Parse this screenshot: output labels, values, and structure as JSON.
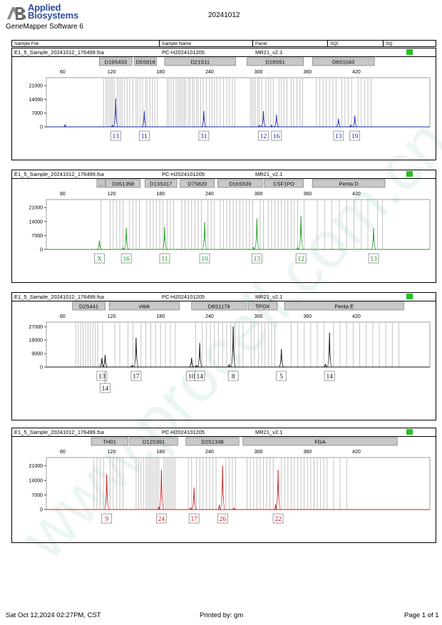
{
  "header": {
    "brand": [
      "Applied",
      "Biosystems"
    ],
    "software": "GeneMapper Software 6",
    "date": "20241012",
    "columns": [
      "Sample File",
      "Sample Name",
      "Panel",
      "SQI",
      "SQ"
    ]
  },
  "panels": [
    {
      "sample_file": "E1_5_Sample_20241012_176499.fsa",
      "sample_name": "PC-H2024101205",
      "panel": "MR21_v2.1",
      "sq_color": "#22c322",
      "color": "#1a2aa0",
      "loci": [
        {
          "name": "D19S433",
          "from": 105,
          "to": 145
        },
        {
          "name": "D5S818",
          "from": 148,
          "to": 175
        },
        {
          "name": "D21S11",
          "from": 185,
          "to": 272
        },
        {
          "name": "D18S51",
          "from": 286,
          "to": 355
        },
        {
          "name": "D6S1043",
          "from": 366,
          "to": 442
        }
      ],
      "x_ticks": [
        60,
        120,
        180,
        240,
        300,
        360,
        420
      ],
      "y_ticks": [
        0,
        7000,
        14000,
        21000
      ],
      "ymax": 25000,
      "peaks": [
        {
          "x": 125,
          "h": 14500,
          "label": "13",
          "row": 0
        },
        {
          "x": 160,
          "h": 8000,
          "label": "11",
          "row": 0
        },
        {
          "x": 233,
          "h": 8000,
          "label": "31",
          "row": 0
        },
        {
          "x": 306,
          "h": 8000,
          "label": "12",
          "row": 0
        },
        {
          "x": 322,
          "h": 6300,
          "label": "16",
          "row": 0
        },
        {
          "x": 398,
          "h": 4200,
          "label": "13",
          "row": 0
        },
        {
          "x": 418,
          "h": 5700,
          "label": "19",
          "row": 0
        }
      ],
      "minor_peaks": [
        {
          "x": 63,
          "h": 1200
        },
        {
          "x": 121,
          "h": 900
        },
        {
          "x": 301,
          "h": 900
        },
        {
          "x": 316,
          "h": 700
        },
        {
          "x": 413,
          "h": 800
        }
      ],
      "bins": [
        110,
        113,
        115,
        117,
        119,
        121,
        123,
        127,
        129,
        131,
        133,
        136,
        139,
        142,
        146,
        150,
        152,
        155,
        158,
        162,
        164,
        167,
        170,
        173,
        176,
        188,
        190,
        193,
        196,
        199,
        201,
        203,
        205,
        207,
        209,
        211,
        214,
        216,
        219,
        221,
        224,
        226,
        229,
        232,
        236,
        240,
        243,
        246,
        249,
        253,
        257,
        261,
        264,
        268,
        271,
        290,
        292,
        294,
        296,
        299,
        301,
        304,
        309,
        312,
        315,
        318,
        325,
        328,
        331,
        335,
        340,
        343,
        347,
        351,
        354,
        371,
        375,
        379,
        383,
        387,
        391,
        395,
        402,
        406,
        410,
        414,
        422,
        426,
        430,
        434,
        438
      ]
    },
    {
      "sample_file": "E1_5_Sample_20241012_176499.fsa",
      "sample_name": "PC-H2024101205",
      "panel": "MR21_v2.1",
      "sq_color": "#22c322",
      "color": "#1e9a1e",
      "loci": [
        {
          "name": "...",
          "from": 102,
          "to": 112
        },
        {
          "name": "D3S1358",
          "from": 113,
          "to": 155
        },
        {
          "name": "D13S317",
          "from": 161,
          "to": 200
        },
        {
          "name": "D7S820",
          "from": 204,
          "to": 246
        },
        {
          "name": "D16S539",
          "from": 250,
          "to": 305
        },
        {
          "name": "CSF1PO",
          "from": 307,
          "to": 355
        },
        {
          "name": "Penta D",
          "from": 366,
          "to": 455
        }
      ],
      "x_ticks": [
        60,
        120,
        180,
        240,
        300,
        360,
        420
      ],
      "y_ticks": [
        0,
        7000,
        14000,
        21000
      ],
      "ymax": 25000,
      "peaks": [
        {
          "x": 105,
          "h": 4500,
          "label": "X",
          "row": 0
        },
        {
          "x": 138,
          "h": 11000,
          "label": "16",
          "row": 0
        },
        {
          "x": 185,
          "h": 11300,
          "label": "11",
          "row": 0
        },
        {
          "x": 234,
          "h": 13700,
          "label": "10",
          "row": 0
        },
        {
          "x": 298,
          "h": 15500,
          "label": "13",
          "row": 0
        },
        {
          "x": 352,
          "h": 16800,
          "label": "12",
          "row": 0
        },
        {
          "x": 441,
          "h": 10700,
          "label": "13",
          "row": 0
        }
      ],
      "minor_peaks": [
        {
          "x": 134,
          "h": 800
        },
        {
          "x": 294,
          "h": 1200
        },
        {
          "x": 348,
          "h": 1100
        }
      ],
      "bins": [
        107,
        118,
        122,
        126,
        130,
        134,
        142,
        146,
        150,
        154,
        163,
        167,
        171,
        175,
        179,
        183,
        188,
        192,
        196,
        206,
        210,
        214,
        218,
        222,
        226,
        230,
        238,
        242,
        246,
        253,
        257,
        261,
        265,
        269,
        273,
        277,
        281,
        285,
        289,
        293,
        302,
        306,
        312,
        316,
        320,
        324,
        328,
        332,
        336,
        340,
        344,
        348,
        356,
        372,
        381,
        390,
        399,
        408,
        417,
        426,
        434,
        446,
        452
      ]
    },
    {
      "sample_file": "E1_5_Sample_20241012_176499.fsa",
      "sample_name": "PC-H2024101205",
      "panel": "MR21_v2.1",
      "sq_color": "#22c322",
      "color": "#111111",
      "loci": [
        {
          "name": "D2S441",
          "from": 72,
          "to": 112
        },
        {
          "name": "vWA",
          "from": 117,
          "to": 203
        },
        {
          "name": "D8S1179",
          "from": 218,
          "to": 285
        },
        {
          "name": "TPOX",
          "from": 287,
          "to": 323
        },
        {
          "name": "Penta E",
          "from": 332,
          "to": 478
        }
      ],
      "x_ticks": [
        60,
        120,
        180,
        240,
        300,
        360,
        420
      ],
      "y_ticks": [
        0,
        9000,
        18000,
        27000
      ],
      "ymax": 30000,
      "peaks": [
        {
          "x": 108,
          "h": 6000,
          "label": "13",
          "row": 0
        },
        {
          "x": 112,
          "h": 8000,
          "label": "14",
          "row": 1
        },
        {
          "x": 150,
          "h": 19500,
          "label": "17",
          "row": 0
        },
        {
          "x": 218,
          "h": 6200,
          "label": "10",
          "row": 0
        },
        {
          "x": 228,
          "h": 16000,
          "label": "14",
          "row": 0
        },
        {
          "x": 269,
          "h": 27000,
          "label": "8",
          "row": 0
        },
        {
          "x": 328,
          "h": 12000,
          "label": "5",
          "row": 0
        },
        {
          "x": 387,
          "h": 23000,
          "label": "14",
          "row": 0
        }
      ],
      "minor_peaks": [
        {
          "x": 145,
          "h": 1200
        },
        {
          "x": 224,
          "h": 1200
        },
        {
          "x": 264,
          "h": 1800
        },
        {
          "x": 382,
          "h": 2000
        }
      ],
      "bins": [
        76,
        79,
        82,
        85,
        88,
        91,
        94,
        97,
        100,
        103,
        109,
        124,
        130,
        140,
        146,
        156,
        162,
        168,
        174,
        180,
        186,
        192,
        198,
        223,
        231,
        236,
        241,
        246,
        251,
        256,
        261,
        266,
        271,
        276,
        281,
        291,
        295,
        300,
        304,
        308,
        312,
        316,
        320,
        340,
        348,
        356,
        364,
        372,
        380,
        392,
        400,
        408,
        416,
        424,
        432,
        440,
        448,
        456,
        464,
        472
      ]
    },
    {
      "sample_file": "E1_5_Sample_20241012_176499.fsa",
      "sample_name": "PC-H2024101205",
      "panel": "MR21_v2.1",
      "sq_color": "#22c322",
      "color": "#c42020",
      "loci": [
        {
          "name": "TH01",
          "from": 95,
          "to": 140
        },
        {
          "name": "D12S391",
          "from": 142,
          "to": 201
        },
        {
          "name": "D2S1338",
          "from": 211,
          "to": 276
        },
        {
          "name": "FGA",
          "from": 281,
          "to": 470
        }
      ],
      "x_ticks": [
        60,
        120,
        180,
        240,
        300,
        360,
        420
      ],
      "y_ticks": [
        0,
        7000,
        14000,
        21000
      ],
      "ymax": 25000,
      "peaks": [
        {
          "x": 114,
          "h": 17000,
          "label": "9",
          "row": 0
        },
        {
          "x": 181,
          "h": 19000,
          "label": "24",
          "row": 0
        },
        {
          "x": 221,
          "h": 10500,
          "label": "17",
          "row": 0
        },
        {
          "x": 256,
          "h": 21000,
          "label": "26",
          "row": 0
        },
        {
          "x": 324,
          "h": 19000,
          "label": "22",
          "row": 0
        }
      ],
      "minor_peaks": [
        {
          "x": 178,
          "h": 1500
        },
        {
          "x": 217,
          "h": 900
        },
        {
          "x": 252,
          "h": 2300
        },
        {
          "x": 270,
          "h": 800
        },
        {
          "x": 321,
          "h": 2500
        }
      ],
      "bins": [
        98,
        102,
        106,
        110,
        118,
        122,
        126,
        130,
        134,
        150,
        153,
        156,
        159,
        162,
        164,
        166,
        168,
        170,
        172,
        174,
        176,
        178,
        184,
        186,
        188,
        190,
        192,
        194,
        196,
        198,
        214,
        218,
        224,
        228,
        232,
        236,
        240,
        244,
        248,
        260,
        264,
        268,
        272,
        286,
        290,
        294,
        298,
        302,
        306,
        310,
        314,
        318,
        328,
        332,
        336,
        340,
        344,
        348,
        352,
        356,
        360,
        364,
        368,
        372,
        376,
        380,
        384,
        392,
        400,
        408
      ]
    }
  ],
  "chart_data": {
    "type": "electropherogram",
    "xlabel": "",
    "ylabel": "",
    "xlim": [
      40,
      510
    ],
    "series": [
      {
        "dye": "blue",
        "peaks_bp": [
          125,
          160,
          233,
          306,
          322,
          398,
          418
        ],
        "heights_rfu": [
          14500,
          8000,
          8000,
          8000,
          6300,
          4200,
          5700
        ],
        "alleles": [
          "13",
          "11",
          "31",
          "12",
          "16",
          "13",
          "19"
        ]
      },
      {
        "dye": "green",
        "peaks_bp": [
          105,
          138,
          185,
          234,
          298,
          352,
          441
        ],
        "heights_rfu": [
          4500,
          11000,
          11300,
          13700,
          15500,
          16800,
          10700
        ],
        "alleles": [
          "X",
          "16",
          "11",
          "10",
          "13",
          "12",
          "13"
        ]
      },
      {
        "dye": "black",
        "peaks_bp": [
          108,
          112,
          150,
          218,
          228,
          269,
          328,
          387
        ],
        "heights_rfu": [
          6000,
          8000,
          19500,
          6200,
          16000,
          27000,
          12000,
          23000
        ],
        "alleles": [
          "13",
          "14",
          "17",
          "10",
          "14",
          "8",
          "5",
          "14"
        ]
      },
      {
        "dye": "red",
        "peaks_bp": [
          114,
          181,
          221,
          256,
          324
        ],
        "heights_rfu": [
          17000,
          19000,
          10500,
          21000,
          19000
        ],
        "alleles": [
          "9",
          "24",
          "17",
          "26",
          "22"
        ]
      }
    ]
  },
  "footer": {
    "printed_at": "Sat Oct 12,2024 02:27PM, CST",
    "printed_by": "Printed by: gm",
    "page": "Page 1 of 1"
  },
  "watermark": "www.procell.com.cn"
}
